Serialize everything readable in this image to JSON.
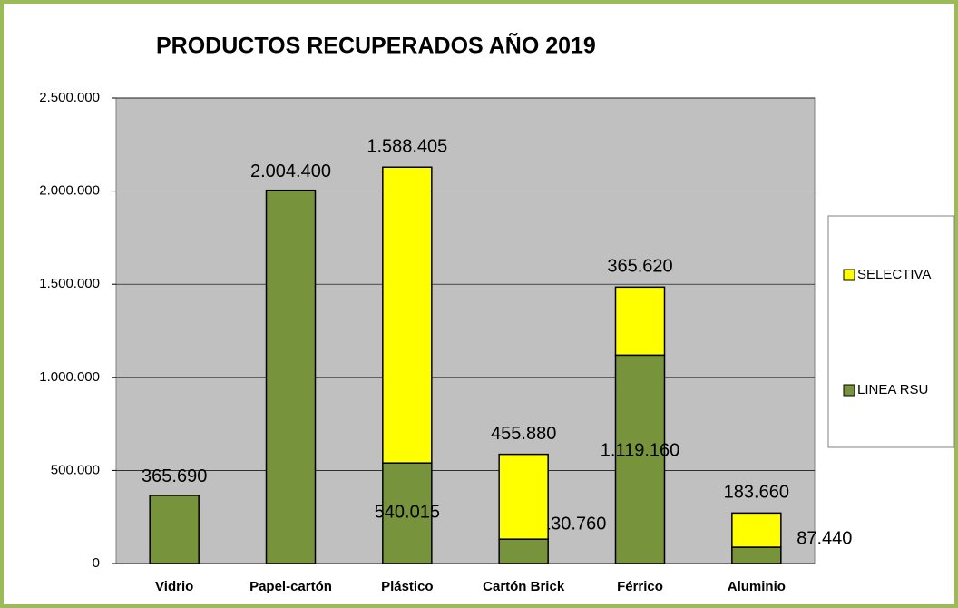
{
  "chart_data": {
    "type": "stacked_bar",
    "title": "PRODUCTOS RECUPERADOS AÑO 2019",
    "categories": [
      "Vidrio",
      "Papel-cartón",
      "Plástico",
      "Cartón Brick",
      "Férrico",
      "Aluminio"
    ],
    "series": [
      {
        "name": "LINEA RSU",
        "color": "#77933c",
        "values": [
          365690,
          2004400,
          540015,
          130760,
          1119160,
          87440
        ],
        "value_labels": [
          "365.690",
          "2.004.400",
          "540.015",
          "130.760",
          "1.119.160",
          "87.440"
        ]
      },
      {
        "name": "SELECTIVA",
        "color": "#ffff00",
        "values": [
          null,
          null,
          1588405,
          455880,
          365620,
          183660
        ],
        "value_labels": [
          null,
          null,
          "1.588.405",
          "455.880",
          "365.620",
          "183.660"
        ]
      }
    ],
    "ylim": [
      0,
      2500000
    ],
    "yticks": [
      0,
      {
        "value": 500000,
        "label": "500.000"
      },
      {
        "value": 1000000,
        "label": "1.000.000"
      },
      {
        "value": 1500000,
        "label": "1.500.000"
      },
      {
        "value": 2000000,
        "label": "2.000.000"
      },
      {
        "value": 2500000,
        "label": "2.500.000"
      }
    ],
    "grid": true,
    "legend": "right"
  }
}
